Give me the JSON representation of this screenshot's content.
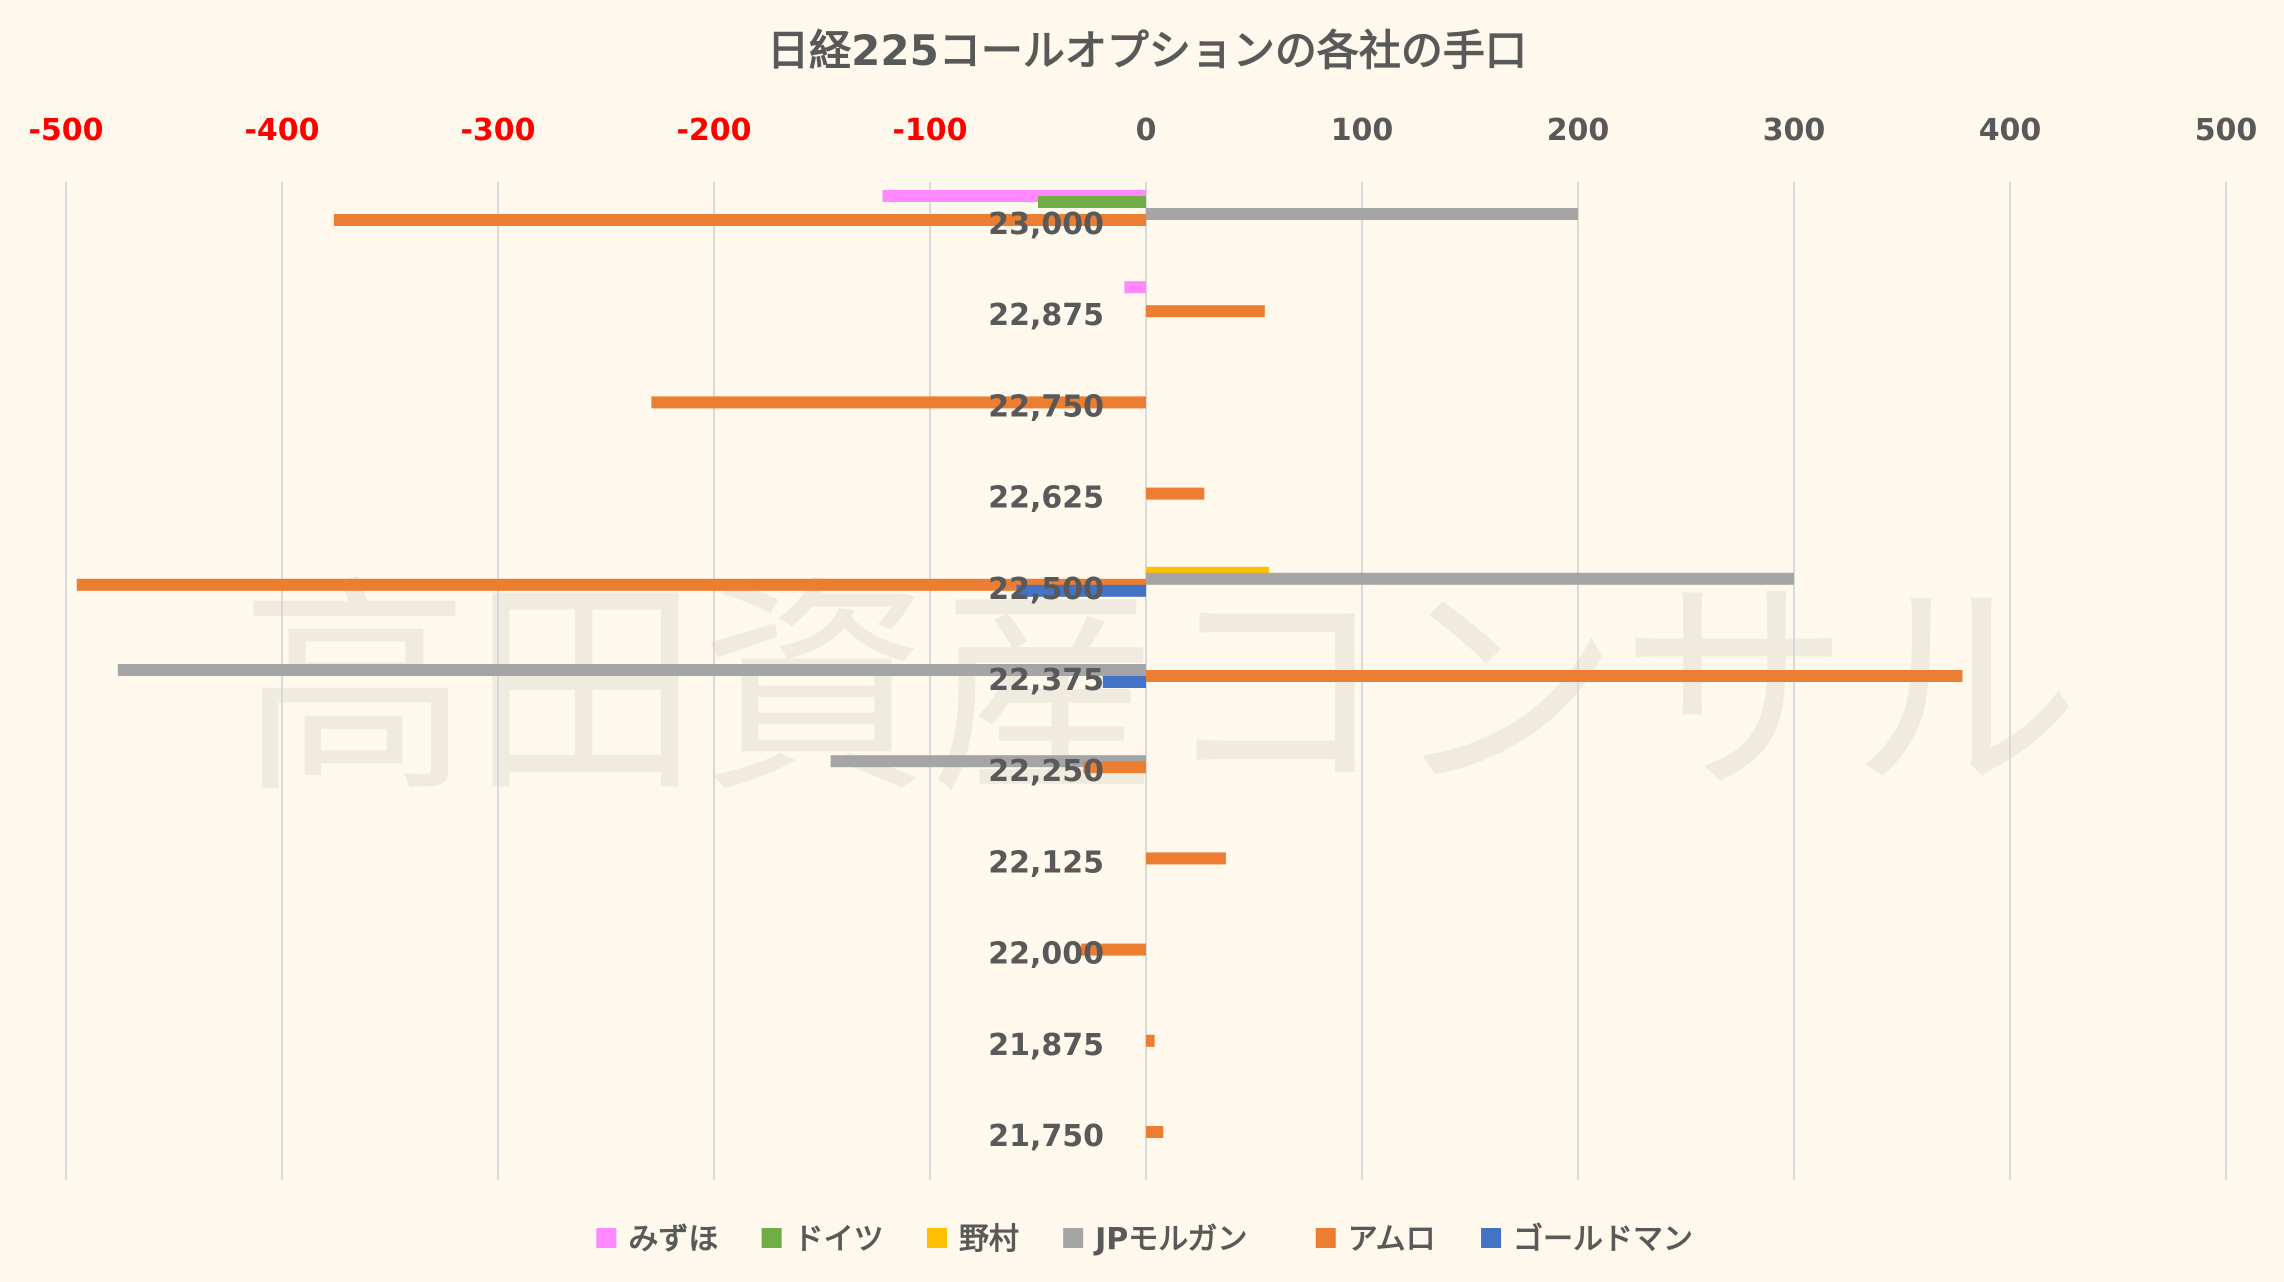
{
  "chart_data": {
    "type": "bar",
    "orientation": "horizontal",
    "title": "日経225コールオプションの各社の手口",
    "watermark": "高田資産コンサル",
    "xlim": [
      -500,
      500
    ],
    "x_ticks": [
      -500,
      -400,
      -300,
      -200,
      -100,
      0,
      100,
      200,
      300,
      400,
      500
    ],
    "negative_tick_color": "#ff0000",
    "positive_tick_color": "#595959",
    "grid": true,
    "legend_position": "bottom",
    "categories": [
      "23,000",
      "22,875",
      "22,750",
      "22,625",
      "22,500",
      "22,375",
      "22,250",
      "22,125",
      "22,000",
      "21,875",
      "21,750"
    ],
    "series": [
      {
        "name": "みずほ",
        "color": "#ff88ff",
        "values": [
          -122,
          -10,
          0,
          0,
          0,
          0,
          0,
          0,
          0,
          0,
          0
        ]
      },
      {
        "name": "ドイツ",
        "color": "#70ad47",
        "values": [
          -50,
          0,
          0,
          0,
          0,
          0,
          0,
          0,
          0,
          0,
          0
        ]
      },
      {
        "name": "野村",
        "color": "#ffc000",
        "values": [
          0,
          0,
          0,
          0,
          57,
          0,
          0,
          0,
          0,
          0,
          0
        ]
      },
      {
        "name": "JPモルガン",
        "color": "#a5a5a5",
        "values": [
          200,
          0,
          0,
          0,
          300,
          -476,
          -146,
          0,
          0,
          0,
          0
        ]
      },
      {
        "name": "アムロ",
        "color": "#ed7d31",
        "values": [
          -376,
          55,
          -229,
          27,
          -495,
          378,
          -29,
          37,
          -30,
          4,
          8
        ]
      },
      {
        "name": "ゴールドマン",
        "color": "#4472c4",
        "values": [
          0,
          0,
          0,
          0,
          -60,
          -20,
          0,
          0,
          0,
          0,
          0
        ]
      }
    ]
  }
}
